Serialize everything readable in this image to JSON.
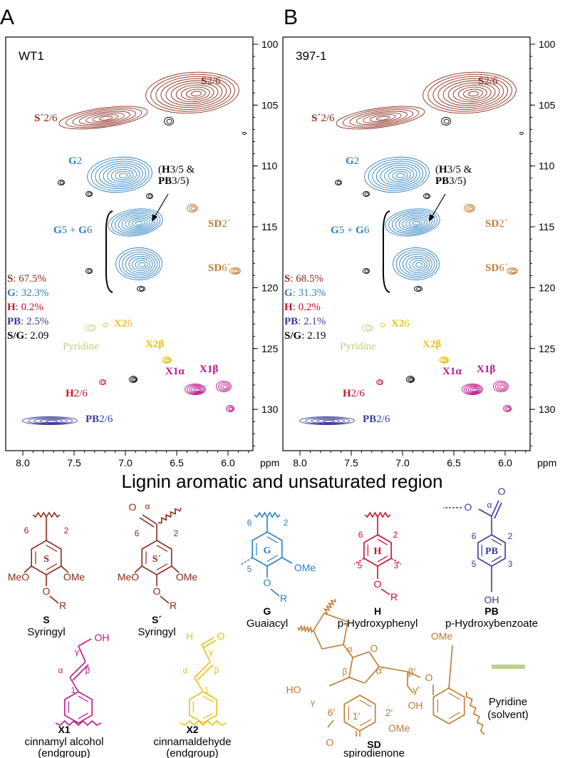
{
  "panels": [
    {
      "letter": "A",
      "sample": "WT1",
      "composition": [
        {
          "key": "S",
          "text": ": 67.5%",
          "color": "#8b2a1a"
        },
        {
          "key": "G",
          "text": ": 32.3%",
          "color": "#2a7fc0"
        },
        {
          "key": "H",
          "text": ": 0.2%",
          "color": "#c8102e"
        },
        {
          "key": "PB",
          "text": ": 2.5%",
          "color": "#3a3a9a"
        },
        {
          "key": "S/G",
          "text": ": 2.09",
          "color": "#000000"
        }
      ]
    },
    {
      "letter": "B",
      "sample": "397-1",
      "composition": [
        {
          "key": "S",
          "text": ": 68.5%",
          "color": "#8b2a1a"
        },
        {
          "key": "G",
          "text": ": 31.3%",
          "color": "#2a7fc0"
        },
        {
          "key": "H",
          "text": ": 0.2%",
          "color": "#c8102e"
        },
        {
          "key": "PB",
          "text": ": 2.1%",
          "color": "#3a3a9a"
        },
        {
          "key": "S/G",
          "text": ": 2.19",
          "color": "#000000"
        }
      ]
    }
  ],
  "y_ticks": [
    "100",
    "105",
    "110",
    "115",
    "120",
    "125",
    "130"
  ],
  "x_ticks": [
    "8.0",
    "7.5",
    "7.0",
    "6.5",
    "6.0"
  ],
  "x_unit": "ppm",
  "peak_labels": [
    {
      "parts": [
        "S",
        "2/6"
      ],
      "bold_first": true,
      "color": "#8b2a1a"
    },
    {
      "parts": [
        "S´",
        "2/6"
      ],
      "bold_first": true,
      "color": "#8b2a1a"
    },
    {
      "parts": [
        "G",
        "2"
      ],
      "bold_first": true,
      "color": "#2a7fc0"
    },
    {
      "parts": [
        "(",
        "H",
        "3/5 &"
      ],
      "bold_first": false,
      "color": "#000000"
    },
    {
      "parts": [
        "PB",
        "3/5)"
      ],
      "bold_first": true,
      "color": "#000000"
    },
    {
      "parts": [
        "G",
        "5 + ",
        "G",
        "6"
      ],
      "bold_first": true,
      "color": "#2a7fc0"
    },
    {
      "parts": [
        "SD",
        "2´"
      ],
      "bold_first": true,
      "color": "#c07a30"
    },
    {
      "parts": [
        "SD",
        "6´"
      ],
      "bold_first": true,
      "color": "#c07a30"
    },
    {
      "parts": [
        "X2",
        "6"
      ],
      "bold_first": true,
      "color": "#e8c21a"
    },
    {
      "parts": [
        "Pyridine"
      ],
      "bold_first": false,
      "color": "#bcd08a"
    },
    {
      "parts": [
        "X2β"
      ],
      "bold_first": true,
      "color": "#e8c21a"
    },
    {
      "parts": [
        "X1α"
      ],
      "bold_first": true,
      "color": "#c0168c"
    },
    {
      "parts": [
        "X1β"
      ],
      "bold_first": true,
      "color": "#c0168c"
    },
    {
      "parts": [
        "H",
        "2/6"
      ],
      "bold_first": true,
      "color": "#c8102e"
    },
    {
      "parts": [
        "PB",
        "2/6"
      ],
      "bold_first": true,
      "color": "#3a3a9a"
    }
  ],
  "region_title": "Lignin aromatic and unsaturated region",
  "structures": [
    {
      "name": "S",
      "description": [
        "Syringyl"
      ],
      "color": "#8b2a1a",
      "atoms": [
        "6",
        "2",
        "S",
        "MeO",
        "OMe",
        "O",
        "R"
      ]
    },
    {
      "name": "S´",
      "description": [
        "Syringyl"
      ],
      "color": "#8b2a1a",
      "atoms": [
        "O",
        "α",
        "6",
        "2",
        "S´",
        "MeO",
        "OMe",
        "O",
        "R"
      ]
    },
    {
      "name": "G",
      "description": [
        "Guaiacyl"
      ],
      "color": "#2a7fc0",
      "atoms": [
        "6",
        "2",
        "G",
        "5",
        "OMe",
        "O",
        "R"
      ]
    },
    {
      "name": "H",
      "description": [
        "p-Hydroxyphenyl"
      ],
      "color": "#c8102e",
      "atoms": [
        "6",
        "2",
        "H",
        "5",
        "3",
        "O",
        "R"
      ]
    },
    {
      "name": "PB",
      "description": [
        "p-Hydroxybenzoate"
      ],
      "color": "#3a3a9a",
      "atoms": [
        "O",
        "α",
        "O",
        "6",
        "2",
        "PB",
        "5",
        "3",
        "OH"
      ]
    },
    {
      "name": "X1",
      "description": [
        "cinnamyl alcohol",
        "(endgroup)"
      ],
      "color": "#c0168c",
      "atoms": [
        "OH",
        "γ",
        "α",
        "β",
        "1"
      ]
    },
    {
      "name": "X2",
      "description": [
        "cinnamaldehyde",
        "(endgroup)"
      ],
      "color": "#e8c21a",
      "atoms": [
        "H",
        "O",
        "γ",
        "α",
        "β",
        "1"
      ]
    },
    {
      "name": "SD",
      "description": [
        "spirodienone"
      ],
      "color": "#c07a30",
      "atoms": [
        "OMe",
        "α",
        "O",
        "α′",
        "β′",
        "O",
        "β",
        "HO",
        "γ",
        "γ′",
        "6′",
        "1′",
        "2′",
        "OH",
        "OMe",
        "O"
      ]
    },
    {
      "description": [
        "Pyridine",
        "(solvent)"
      ],
      "color": "#bcd08a",
      "atoms": []
    }
  ]
}
